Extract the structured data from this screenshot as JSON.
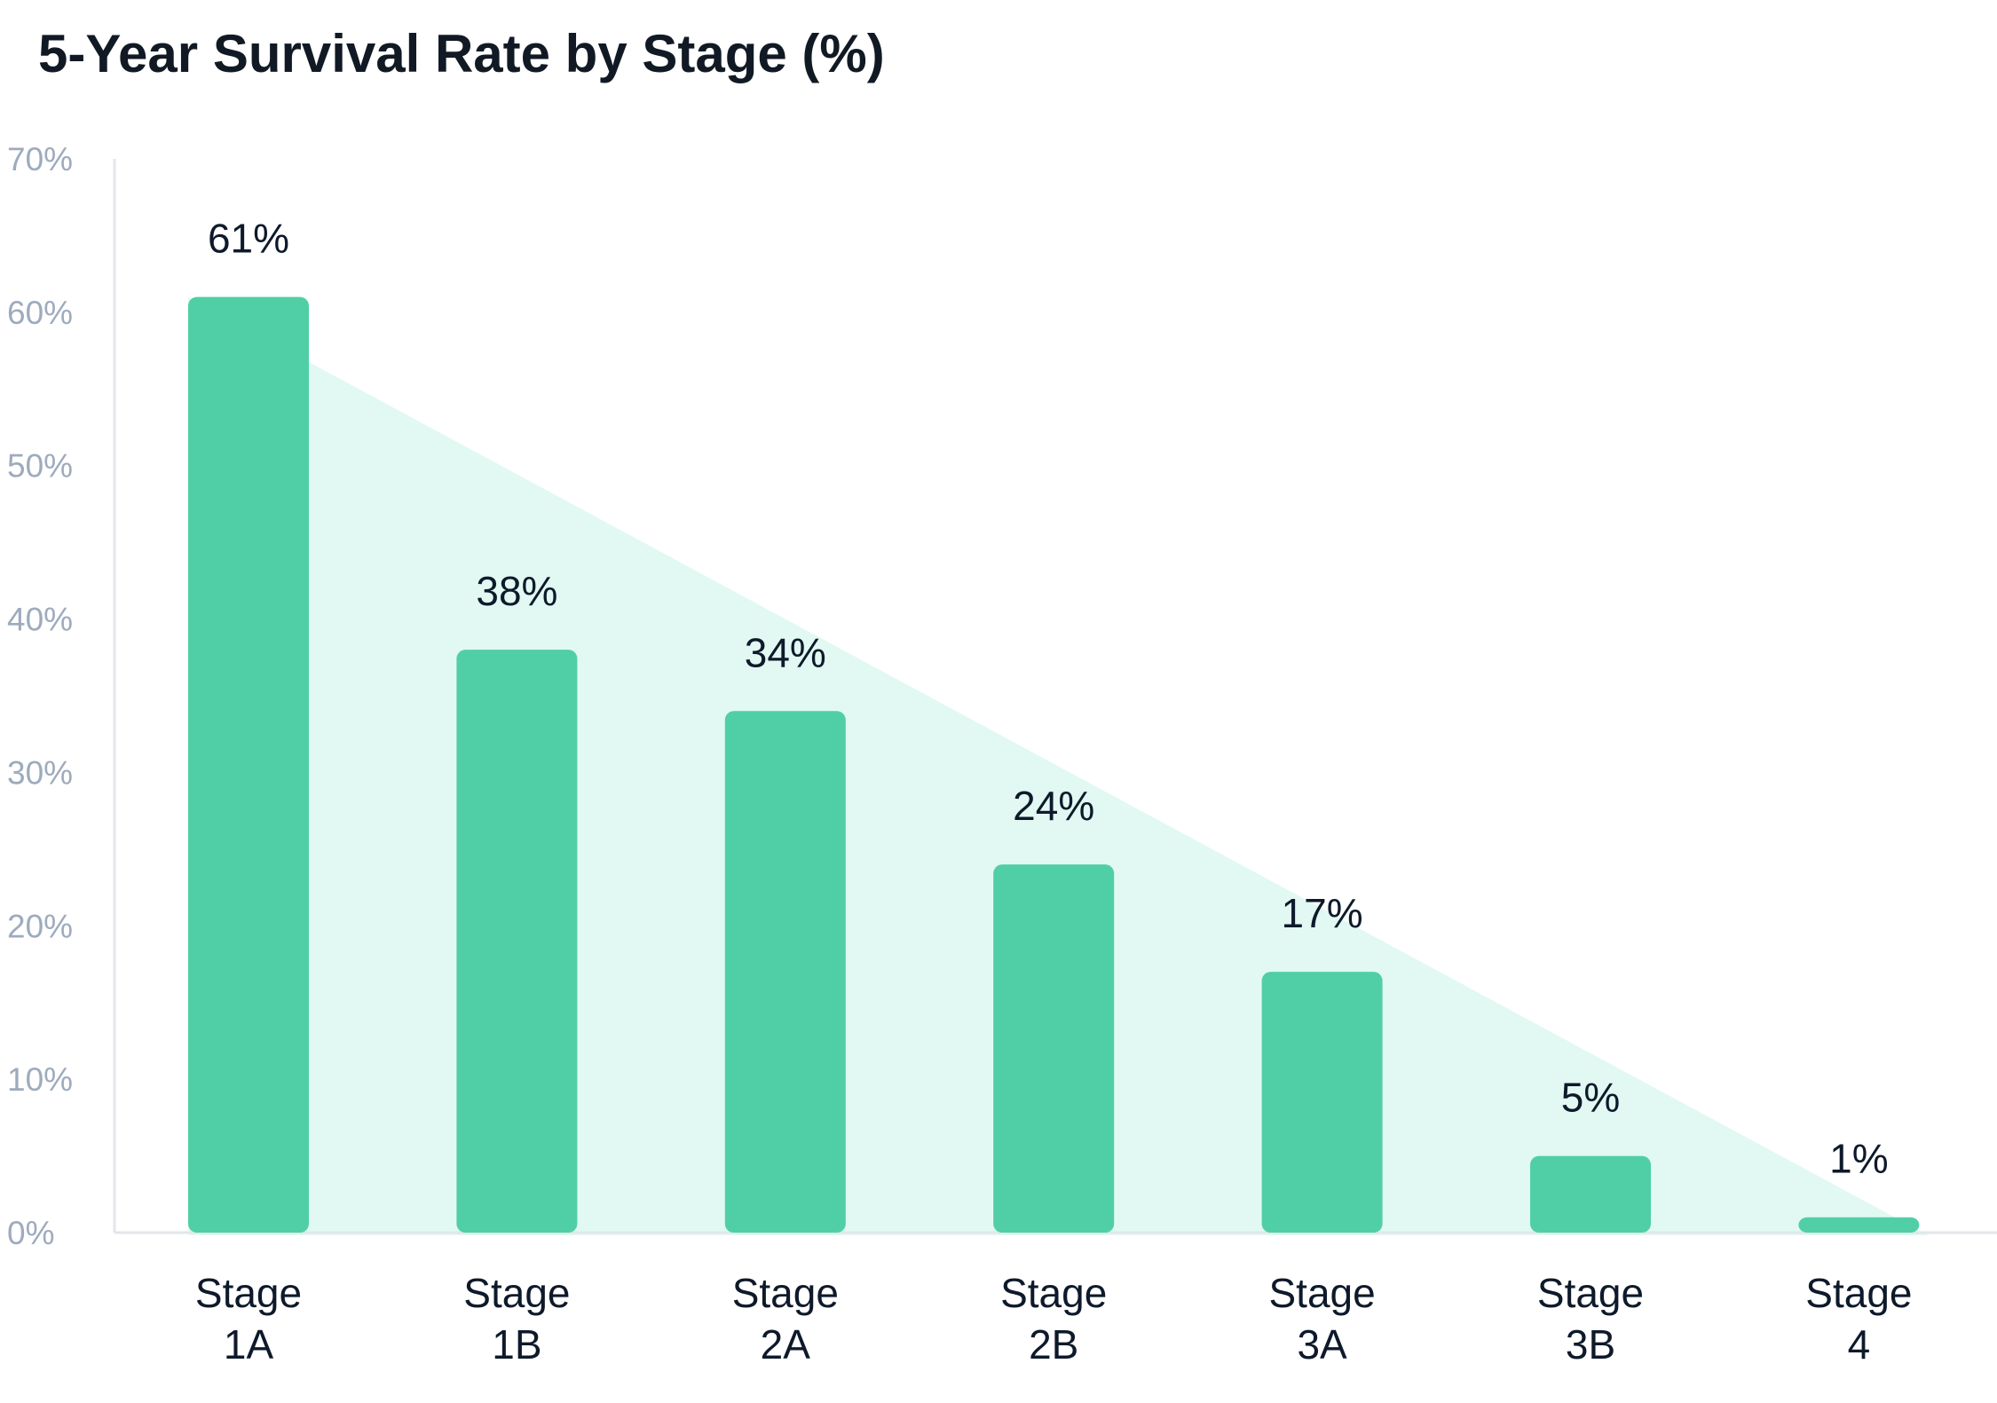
{
  "chart_data": {
    "type": "bar",
    "title": "5-Year Survival Rate by Stage (%)",
    "categories": [
      [
        "Stage",
        "1A"
      ],
      [
        "Stage",
        "1B"
      ],
      [
        "Stage",
        "2A"
      ],
      [
        "Stage",
        "2B"
      ],
      [
        "Stage",
        "3A"
      ],
      [
        "Stage",
        "3B"
      ],
      [
        "Stage",
        "4"
      ]
    ],
    "values": [
      61,
      38,
      34,
      24,
      17,
      5,
      1
    ],
    "data_labels": [
      "61%",
      "38%",
      "34%",
      "24%",
      "17%",
      "5%",
      "1%"
    ],
    "ylim": [
      0,
      70
    ],
    "yticks": [
      0,
      10,
      20,
      30,
      40,
      50,
      60,
      70
    ],
    "ytick_labels": [
      "0%",
      "10%",
      "20%",
      "30%",
      "40%",
      "50%",
      "60%",
      "70%"
    ],
    "grid": false,
    "legend": "none",
    "colors": {
      "bar": "#4dcea4",
      "trend_fill": "#e2f9f3",
      "axis": "#e3e6ea",
      "tick_text": "#9eabbd",
      "text": "#0e1a2b"
    }
  }
}
